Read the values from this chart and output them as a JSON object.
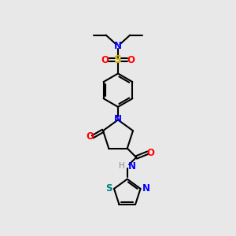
{
  "bg_color": "#e8e8e8",
  "bond_color": "#000000",
  "N_color": "#0000ff",
  "O_color": "#ff0000",
  "S_sulfonyl_color": "#ccaa00",
  "S_thiazole_color": "#008080",
  "H_color": "#888888",
  "line_width": 1.5,
  "font_size": 8.5,
  "fig_size": [
    3.0,
    3.0
  ],
  "dpi": 100,
  "xlim": [
    0,
    10
  ],
  "ylim": [
    0,
    10
  ]
}
